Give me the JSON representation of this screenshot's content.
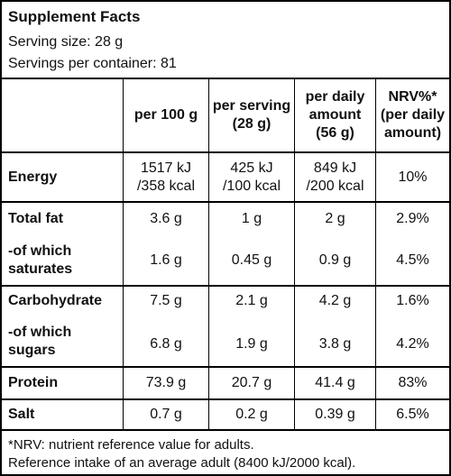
{
  "title": "Supplement Facts",
  "serving_size": "Serving size: 28 g",
  "servings_per_container": "Servings per container: 81",
  "columns": {
    "per100": "per 100 g",
    "per_serving": "per serving\n(28 g)",
    "per_daily": "per daily\namount\n(56 g)",
    "nrv": "NRV%*\n(per daily\namount)"
  },
  "rows": [
    {
      "name": "Energy",
      "per100": "1517 kJ\n/358 kcal",
      "per_serving": "425 kJ\n/100 kcal",
      "per_daily": "849 kJ\n/200 kcal",
      "nrv": "10%"
    },
    {
      "name": "Total fat",
      "per100": "3.6 g",
      "per_serving": "1 g",
      "per_daily": "2 g",
      "nrv": "2.9%"
    },
    {
      "name": "-of which\nsaturates",
      "per100": "1.6 g",
      "per_serving": "0.45 g",
      "per_daily": "0.9 g",
      "nrv": "4.5%"
    },
    {
      "name": "Carbohydrate",
      "per100": "7.5 g",
      "per_serving": "2.1 g",
      "per_daily": "4.2 g",
      "nrv": "1.6%"
    },
    {
      "name": "-of which\nsugars",
      "per100": "6.8 g",
      "per_serving": "1.9 g",
      "per_daily": "3.8 g",
      "nrv": "4.2%"
    },
    {
      "name": "Protein",
      "per100": "73.9 g",
      "per_serving": "20.7 g",
      "per_daily": "41.4 g",
      "nrv": "83%"
    },
    {
      "name": "Salt",
      "per100": "0.7 g",
      "per_serving": "0.2 g",
      "per_daily": "0.39 g",
      "nrv": "6.5%"
    }
  ],
  "footnote_1": "*NRV: nutrient reference value for adults.",
  "footnote_2": "Reference intake of an average adult (8400 kJ/2000 kcal)."
}
